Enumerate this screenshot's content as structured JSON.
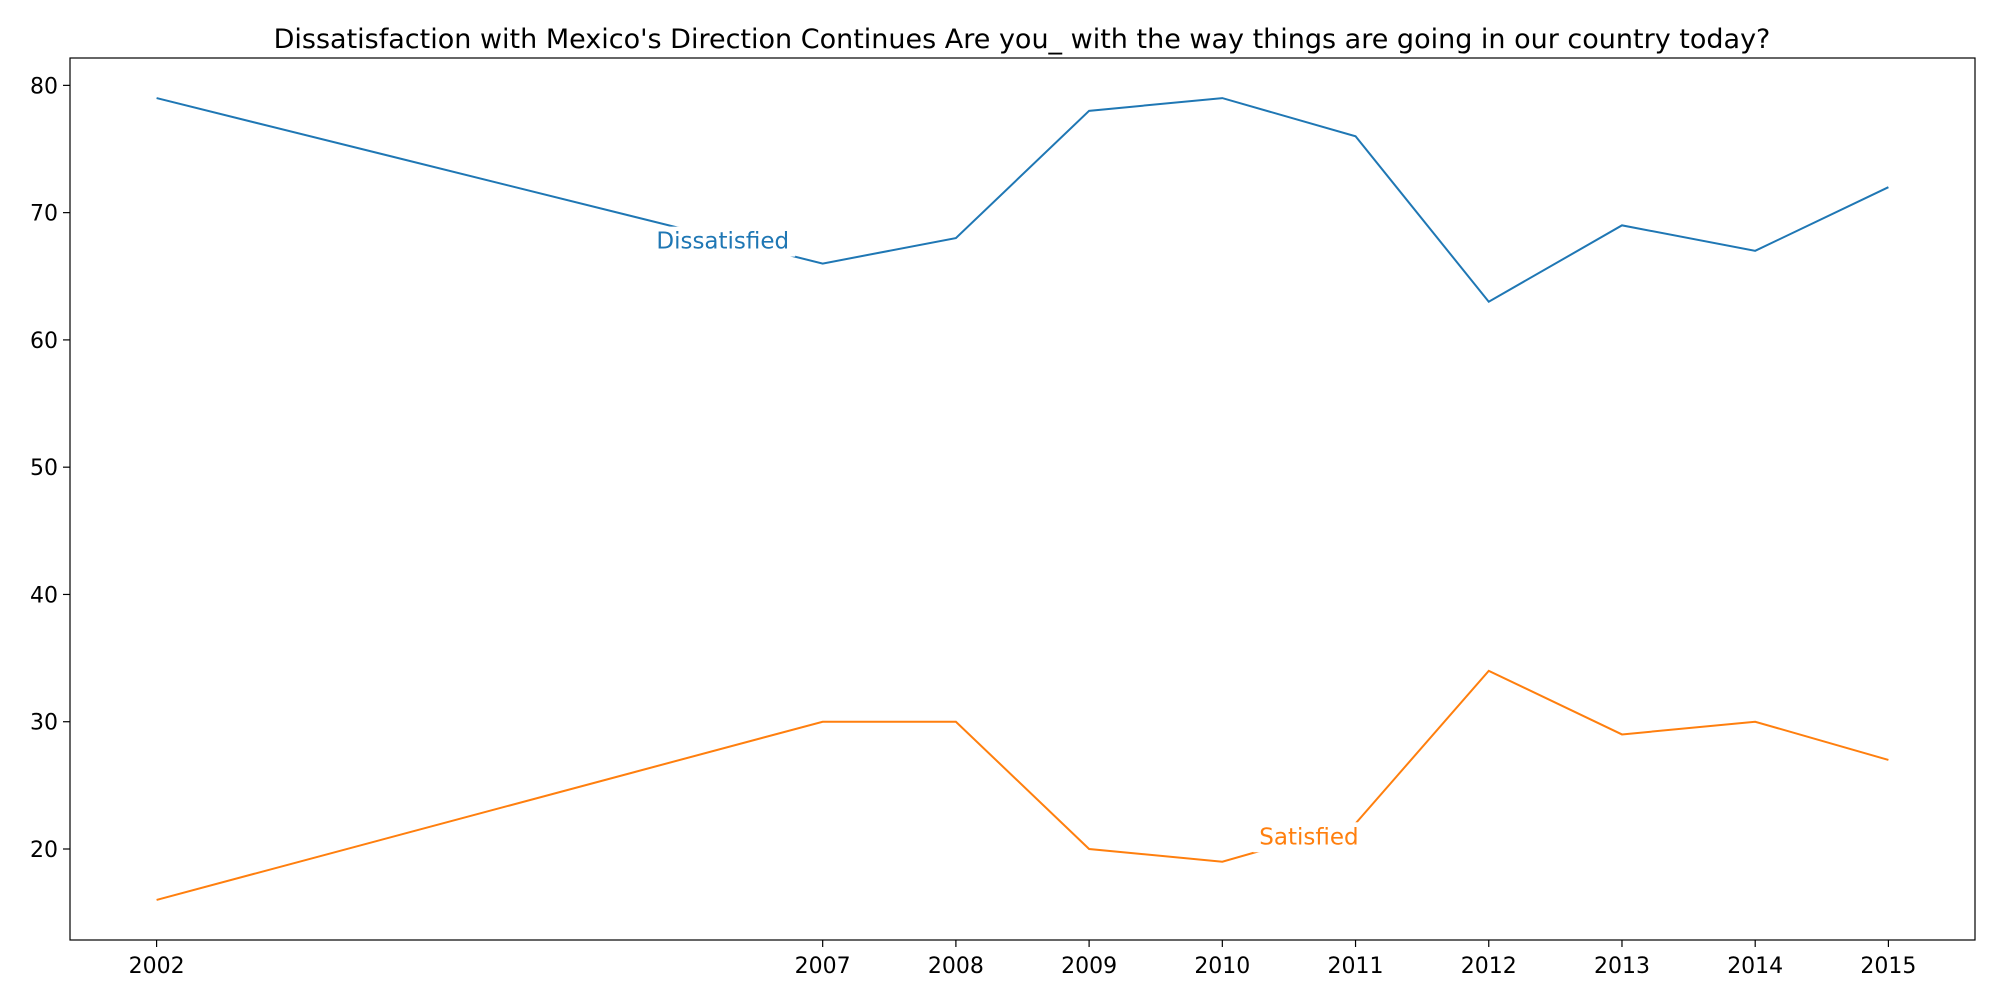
{
  "chart_data": {
    "type": "line",
    "title": "Dissatisfaction with Mexico's Direction Continues Are you_ with the way things are going in our country today?",
    "xlabel": "",
    "ylabel": "",
    "x": [
      2002,
      2007,
      2008,
      2009,
      2010,
      2011,
      2012,
      2013,
      2014,
      2015
    ],
    "xticks": [
      "2002",
      "2007",
      "2008",
      "2009",
      "2010",
      "2011",
      "2012",
      "2013",
      "2014",
      "2015"
    ],
    "yticks": [
      20,
      30,
      40,
      50,
      60,
      70,
      80
    ],
    "xlim": [
      2001.35,
      2015.65
    ],
    "ylim": [
      12.85,
      82.15
    ],
    "grid": false,
    "series": [
      {
        "name": "Dissatisfied",
        "color": "#1f77b4",
        "values": [
          79,
          66,
          68,
          78,
          79,
          76,
          63,
          69,
          67,
          72
        ],
        "label_at": {
          "x": 2006.25,
          "y": 67.8
        }
      },
      {
        "name": "Satisfied",
        "color": "#ff7f0e",
        "values": [
          16,
          30,
          30,
          20,
          19,
          22,
          34,
          29,
          30,
          27
        ],
        "label_at": {
          "x": 2010.65,
          "y": 21
        }
      }
    ]
  }
}
